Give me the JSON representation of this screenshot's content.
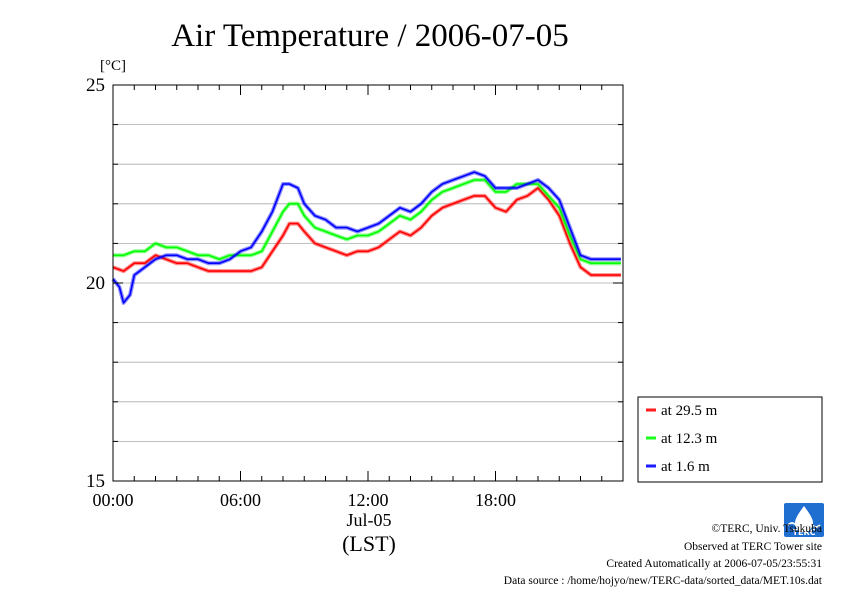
{
  "chart_data": {
    "type": "line",
    "title": "Air Temperature / 2006-07-05",
    "ylabel": "[°C]",
    "xlabel": "(LST)",
    "date_label": "Jul-05",
    "ylim": [
      15,
      25
    ],
    "yticks": [
      "15",
      "20",
      "25"
    ],
    "xlim_hours": [
      0,
      24
    ],
    "xticks": [
      "00:00",
      "06:00",
      "12:00",
      "18:00"
    ],
    "grid": true,
    "legend_position": "bottom-right outside",
    "series": [
      {
        "name": "at 29.5 m",
        "color": "#ff0000",
        "x": [
          0,
          0.5,
          1.0,
          1.5,
          2.0,
          2.5,
          3.0,
          3.5,
          4.0,
          4.5,
          5.0,
          5.5,
          6.0,
          6.5,
          7.0,
          7.5,
          8.0,
          8.3,
          8.7,
          9.0,
          9.5,
          10.0,
          10.5,
          11.0,
          11.5,
          12.0,
          12.5,
          13.0,
          13.5,
          14.0,
          14.5,
          15.0,
          15.5,
          16.0,
          16.5,
          17.0,
          17.5,
          18.0,
          18.5,
          19.0,
          19.5,
          20.0,
          20.5,
          21.0,
          21.5,
          22.0,
          22.5,
          23.0,
          23.5,
          23.9
        ],
        "y": [
          20.4,
          20.3,
          20.5,
          20.5,
          20.7,
          20.6,
          20.5,
          20.5,
          20.4,
          20.3,
          20.3,
          20.3,
          20.3,
          20.3,
          20.4,
          20.8,
          21.2,
          21.5,
          21.5,
          21.3,
          21.0,
          20.9,
          20.8,
          20.7,
          20.8,
          20.8,
          20.9,
          21.1,
          21.3,
          21.2,
          21.4,
          21.7,
          21.9,
          22.0,
          22.1,
          22.2,
          22.2,
          21.9,
          21.8,
          22.1,
          22.2,
          22.4,
          22.1,
          21.7,
          21.0,
          20.4,
          20.2,
          20.2,
          20.2,
          20.2
        ]
      },
      {
        "name": "at 12.3 m",
        "color": "#00ff00",
        "x": [
          0,
          0.5,
          1.0,
          1.5,
          2.0,
          2.5,
          3.0,
          3.5,
          4.0,
          4.5,
          5.0,
          5.5,
          6.0,
          6.5,
          7.0,
          7.5,
          8.0,
          8.3,
          8.7,
          9.0,
          9.5,
          10.0,
          10.5,
          11.0,
          11.5,
          12.0,
          12.5,
          13.0,
          13.5,
          14.0,
          14.5,
          15.0,
          15.5,
          16.0,
          16.5,
          17.0,
          17.5,
          18.0,
          18.5,
          19.0,
          19.5,
          20.0,
          20.5,
          21.0,
          21.5,
          22.0,
          22.5,
          23.0,
          23.5,
          23.9
        ],
        "y": [
          20.7,
          20.7,
          20.8,
          20.8,
          21.0,
          20.9,
          20.9,
          20.8,
          20.7,
          20.7,
          20.6,
          20.7,
          20.7,
          20.7,
          20.8,
          21.3,
          21.8,
          22.0,
          22.0,
          21.7,
          21.4,
          21.3,
          21.2,
          21.1,
          21.2,
          21.2,
          21.3,
          21.5,
          21.7,
          21.6,
          21.8,
          22.1,
          22.3,
          22.4,
          22.5,
          22.6,
          22.6,
          22.3,
          22.3,
          22.5,
          22.5,
          22.5,
          22.2,
          21.9,
          21.2,
          20.6,
          20.5,
          20.5,
          20.5,
          20.5
        ]
      },
      {
        "name": "at 1.6 m",
        "color": "#0000ff",
        "x": [
          0,
          0.3,
          0.5,
          0.8,
          1.0,
          1.5,
          2.0,
          2.5,
          3.0,
          3.5,
          4.0,
          4.5,
          5.0,
          5.5,
          6.0,
          6.5,
          7.0,
          7.5,
          8.0,
          8.3,
          8.7,
          9.0,
          9.5,
          10.0,
          10.5,
          11.0,
          11.5,
          12.0,
          12.5,
          13.0,
          13.5,
          14.0,
          14.5,
          15.0,
          15.5,
          16.0,
          16.5,
          17.0,
          17.5,
          18.0,
          18.5,
          19.0,
          19.5,
          20.0,
          20.5,
          21.0,
          21.5,
          22.0,
          22.5,
          23.0,
          23.5,
          23.9
        ],
        "y": [
          20.1,
          19.9,
          19.5,
          19.7,
          20.2,
          20.4,
          20.6,
          20.7,
          20.7,
          20.6,
          20.6,
          20.5,
          20.5,
          20.6,
          20.8,
          20.9,
          21.3,
          21.8,
          22.5,
          22.5,
          22.4,
          22.0,
          21.7,
          21.6,
          21.4,
          21.4,
          21.3,
          21.4,
          21.5,
          21.7,
          21.9,
          21.8,
          22.0,
          22.3,
          22.5,
          22.6,
          22.7,
          22.8,
          22.7,
          22.4,
          22.4,
          22.4,
          22.5,
          22.6,
          22.4,
          22.1,
          21.4,
          20.7,
          20.6,
          20.6,
          20.6,
          20.6
        ]
      }
    ]
  },
  "credits": {
    "line1": "©TERC, Univ. Tsukuba",
    "line2": "Observed at TERC Tower site",
    "line3": "Created Automatically at 2006-07-05/23:55:31",
    "line4": "Data source : /home/hojyo/new/TERC-data/sorted_data/MET.10s.dat"
  },
  "logo": {
    "name": "terc-logo-icon",
    "text": "TERC",
    "color": "#1f6fd0"
  }
}
